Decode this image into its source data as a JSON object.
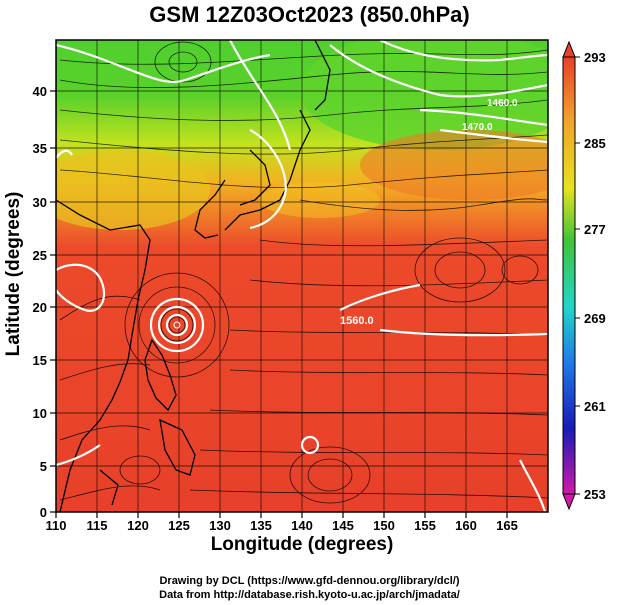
{
  "title": "GSM 12Z03Oct2023 (850.0hPa)",
  "xaxis": {
    "label": "Longitude (degrees)",
    "ticks": [
      "110",
      "115",
      "120",
      "125",
      "130",
      "135",
      "140",
      "145",
      "150",
      "155",
      "160",
      "165"
    ]
  },
  "yaxis": {
    "label": "Latitude  (degrees)",
    "ticks": [
      "0",
      "5",
      "10",
      "15",
      "20",
      "25",
      "30",
      "35",
      "40",
      "45"
    ]
  },
  "colorbar": {
    "labels": [
      "293",
      "285",
      "277",
      "269",
      "261",
      "253"
    ]
  },
  "contour_labels": [
    "1560.0",
    "1460.0",
    "1470.0"
  ],
  "credits": {
    "line1": "Drawing by DCL (https://www.gfd-dennou.org/library/dcl/)",
    "line2": "Data from http://database.rish.kyoto-u.ac.jp/arch/jmadata/"
  },
  "colors": {
    "warm": "#e8402a",
    "orange": "#f08a26",
    "yellow": "#e8d21a",
    "green": "#3fc43a",
    "contour": "#ffffff"
  }
}
